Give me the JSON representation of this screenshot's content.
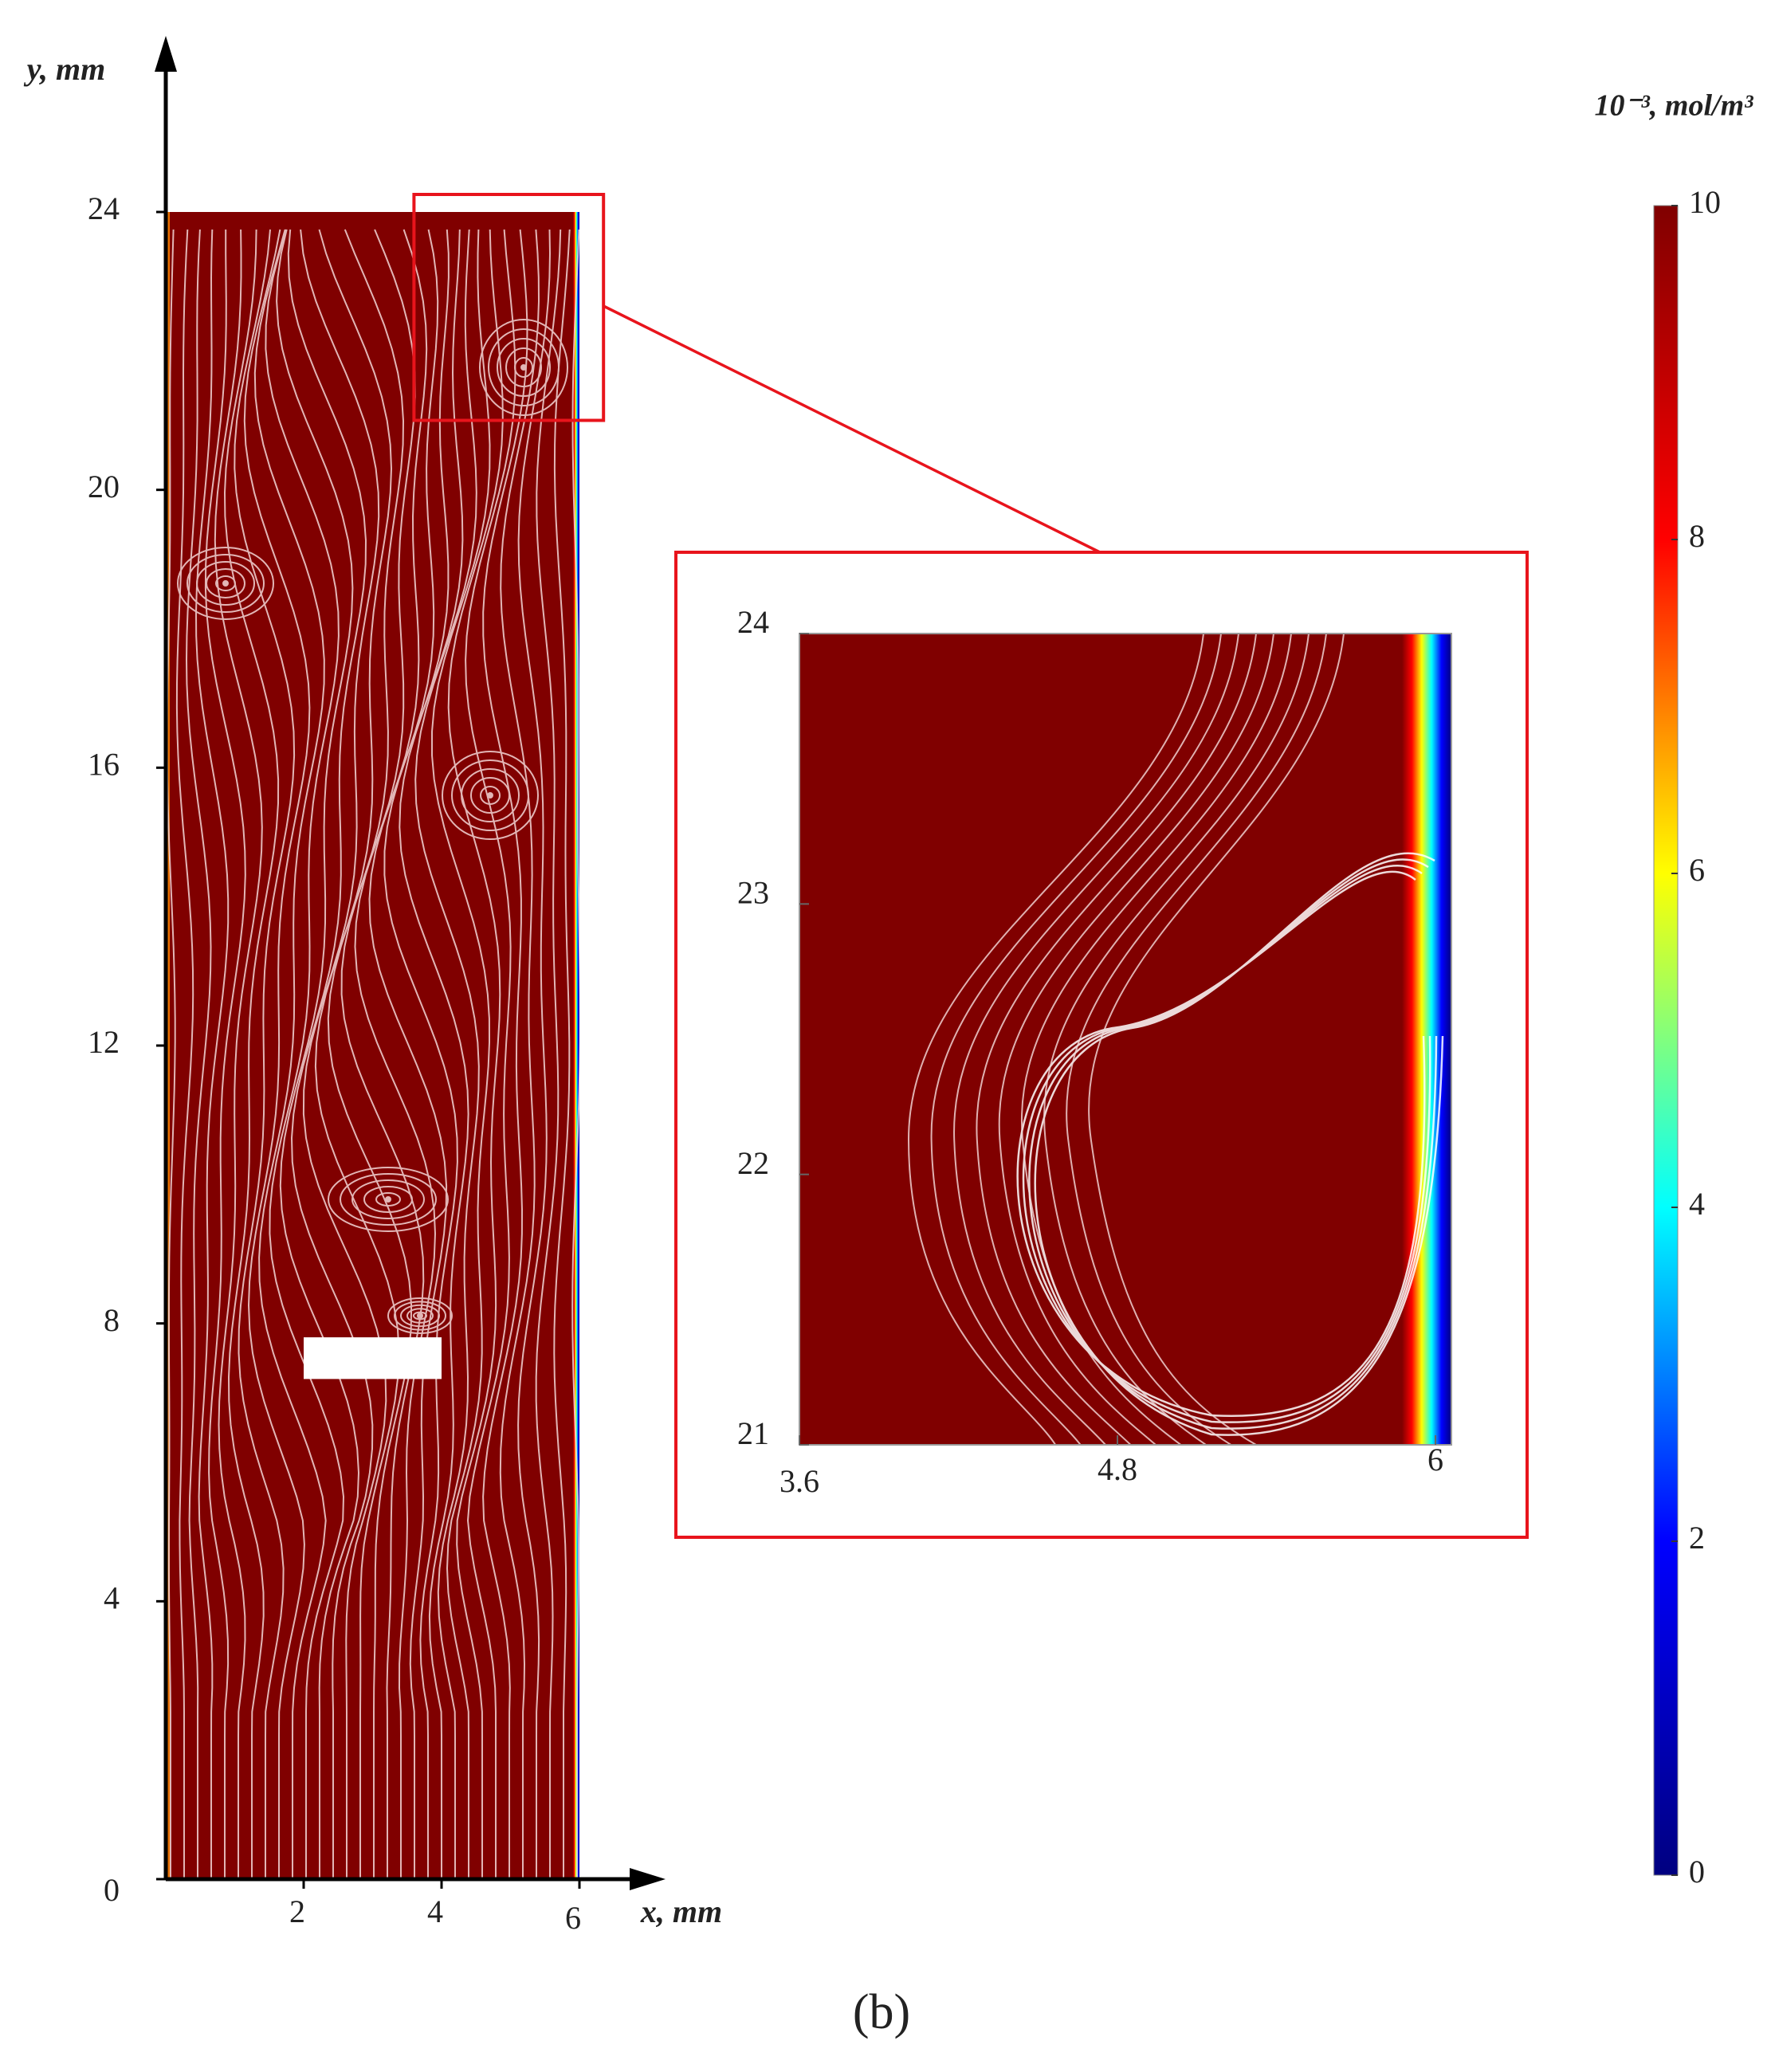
{
  "chart_data": {
    "type": "field",
    "caption": "(b)",
    "main": {
      "xlabel": "x, mm",
      "ylabel": "y, mm",
      "xlim": [
        0,
        6
      ],
      "ylim": [
        0,
        24
      ],
      "xticks": [
        2,
        4,
        6
      ],
      "yticks": [
        0,
        4,
        8,
        12,
        16,
        20,
        24
      ],
      "obstacle": {
        "x": [
          2,
          4
        ],
        "y": [
          7.2,
          7.8
        ]
      }
    },
    "inset": {
      "xlim": [
        3.6,
        6.06
      ],
      "ylim": [
        21,
        24
      ],
      "xticks": [
        3.6,
        4.8,
        6
      ],
      "yticks": [
        21,
        22,
        23,
        24
      ]
    },
    "colorbar": {
      "title": "10⁻³, mol/m³",
      "clim": [
        0,
        10
      ],
      "ticks": [
        0,
        2,
        4,
        6,
        8,
        10
      ],
      "colormap": [
        "#000080",
        "#0000ff",
        "#00ffff",
        "#ffff00",
        "#ff0000",
        "#800000"
      ]
    },
    "highlight_color": "#e8141c"
  }
}
